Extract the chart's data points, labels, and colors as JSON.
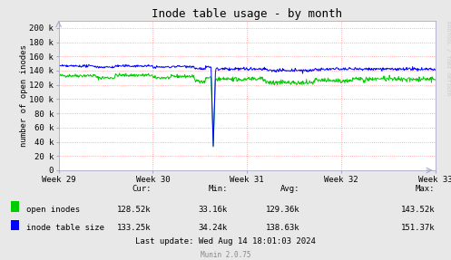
{
  "title": "Inode table usage - by month",
  "ylabel": "number of open inodes",
  "xlabel_ticks": [
    "Week 29",
    "Week 30",
    "Week 31",
    "Week 32",
    "Week 33"
  ],
  "yticks": [
    0,
    20000,
    40000,
    60000,
    80000,
    100000,
    120000,
    140000,
    160000,
    180000,
    200000
  ],
  "ytick_labels": [
    "0",
    "20 k",
    "40 k",
    "60 k",
    "80 k",
    "100 k",
    "120 k",
    "140 k",
    "160 k",
    "180 k",
    "200 k"
  ],
  "ylim": [
    0,
    210000
  ],
  "bg_color": "#e8e8e8",
  "plot_bg_color": "#ffffff",
  "grid_color": "#ff9999",
  "open_inodes_color": "#00cc00",
  "inode_table_color": "#0000ff",
  "legend_labels": [
    "open inodes",
    "inode table size"
  ],
  "stats_cur": [
    "128.52k",
    "133.25k"
  ],
  "stats_min": [
    "33.16k",
    "34.24k"
  ],
  "stats_avg": [
    "129.36k",
    "138.63k"
  ],
  "stats_max": [
    "143.52k",
    "151.37k"
  ],
  "last_update": "Last update: Wed Aug 14 18:01:03 2024",
  "footer": "Munin 2.0.75",
  "watermark": "RRDTOOL / TOBI OETIKER",
  "title_fontsize": 9,
  "axis_fontsize": 6.5,
  "legend_fontsize": 6.5,
  "stats_fontsize": 6.5,
  "footer_fontsize": 5.5
}
